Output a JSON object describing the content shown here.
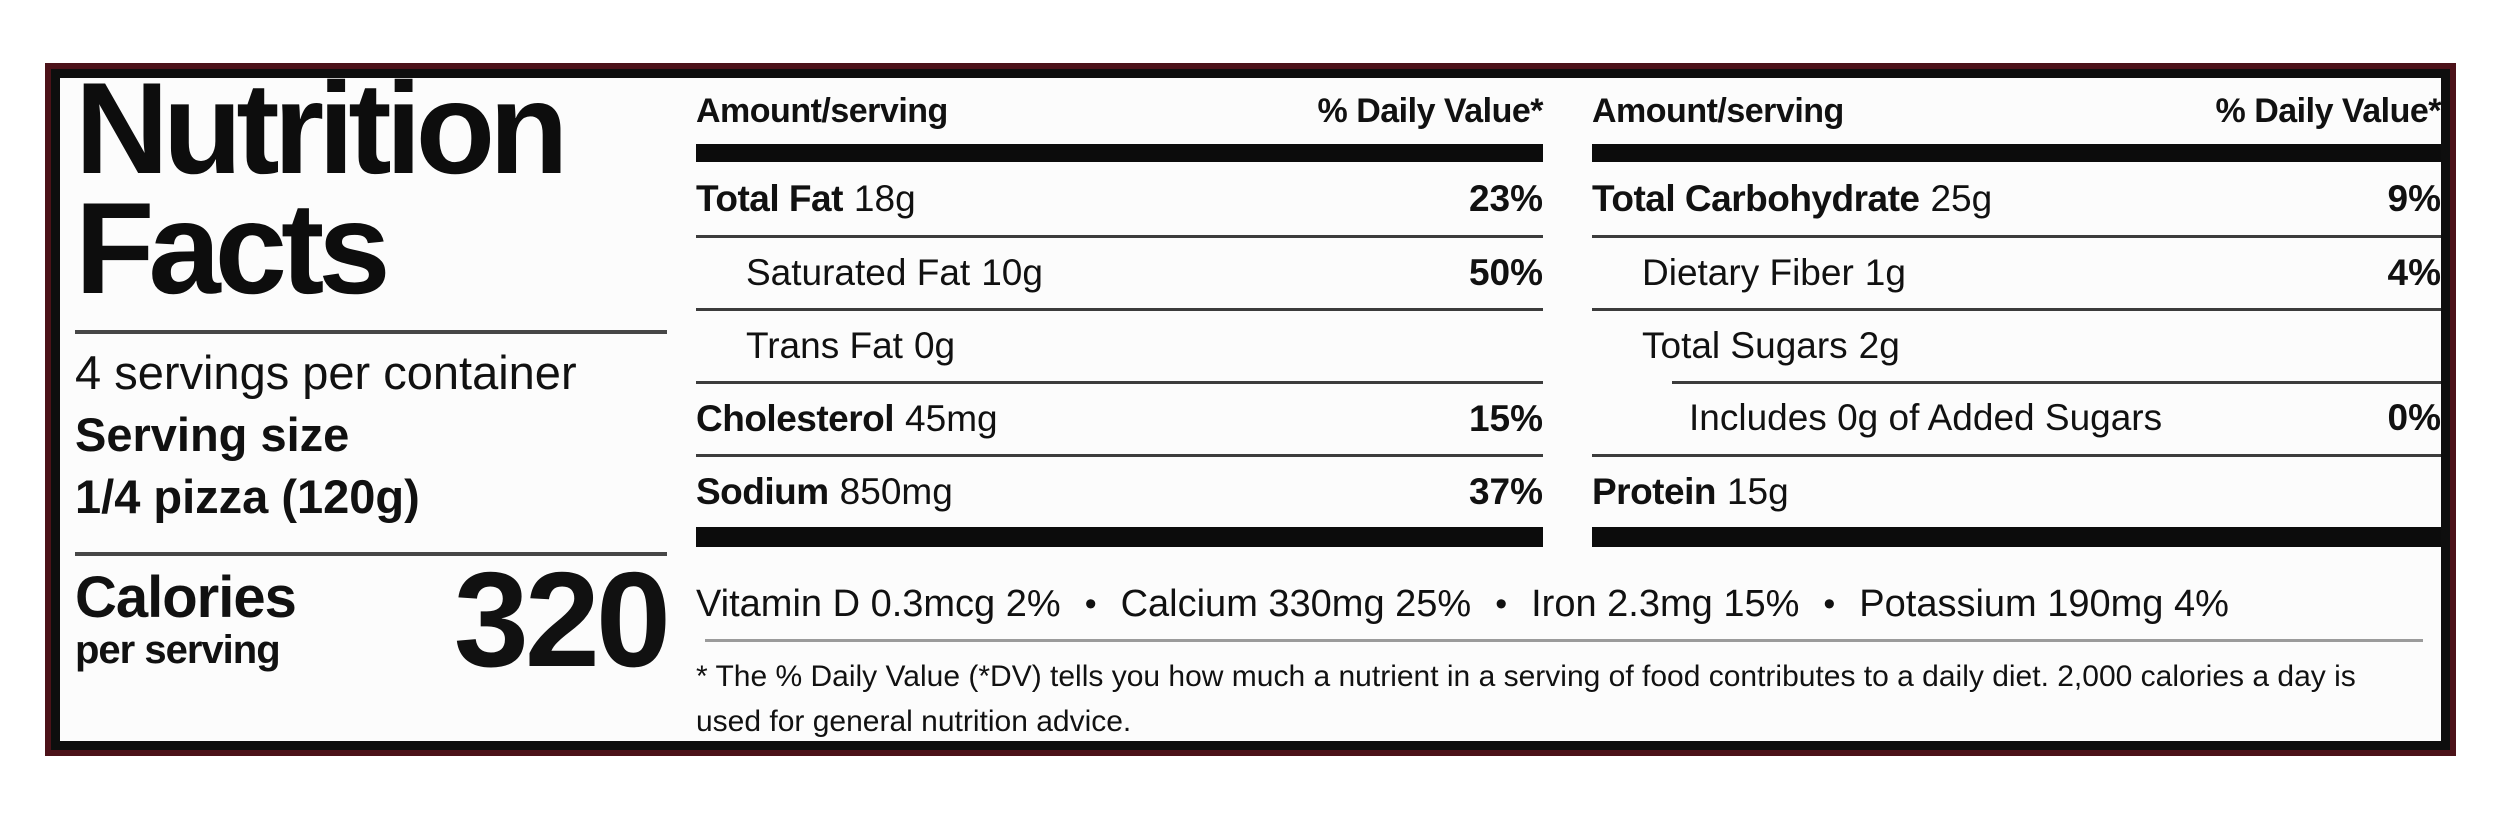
{
  "colors": {
    "page_background": "#ffffff",
    "label_background": "#fcfcfc",
    "text": "#111111",
    "border_inner_black": "#0e0e0e",
    "border_outer_maroon": "#4c1219",
    "row_rule": "#3c3c3c",
    "footnote_rule": "#9b9b9b"
  },
  "label": {
    "title_line1": "Nutrition",
    "title_line2": "Facts",
    "servings_per_container": "4 servings per container",
    "serving_size_label": "Serving size",
    "serving_size_value": "1/4 pizza (120g)",
    "calories_label": "Calories",
    "calories_sublabel": "per serving",
    "calories_value": "320"
  },
  "columns": {
    "middle": {
      "header_amount": "Amount/serving",
      "header_dv": "% Daily Value*",
      "rows": [
        {
          "name": "Total Fat",
          "amount": "18g",
          "dv": "23%"
        },
        {
          "name": "Saturated Fat",
          "amount": "10g",
          "dv": "50%"
        },
        {
          "name": "Trans Fat",
          "amount": "0g",
          "dv": ""
        },
        {
          "name": "Cholesterol",
          "amount": "45mg",
          "dv": "15%"
        },
        {
          "name": "Sodium",
          "amount": "850mg",
          "dv": "37%"
        }
      ]
    },
    "right": {
      "header_amount": "Amount/serving",
      "header_dv": "% Daily Value*",
      "rows": [
        {
          "name": "Total Carbohydrate",
          "amount": "25g",
          "dv": "9%"
        },
        {
          "name": "Dietary Fiber",
          "amount": "1g",
          "dv": "4%"
        },
        {
          "name": "Total Sugars",
          "amount": "2g",
          "dv": ""
        },
        {
          "name": "Includes 0g of Added Sugars",
          "amount": "",
          "dv": "0%"
        },
        {
          "name": "Protein",
          "amount": "15g",
          "dv": ""
        }
      ]
    }
  },
  "micronutrients": {
    "separator": "•",
    "items": [
      "Vitamin D 0.3mcg 2%",
      "Calcium 330mg 25%",
      "Iron 2.3mg 15%",
      "Potassium 190mg 4%"
    ]
  },
  "footnote": "* The % Daily Value (*DV) tells you how much a nutrient in a serving of food contributes to a daily diet. 2,000 calories a day is used for general nutrition advice."
}
